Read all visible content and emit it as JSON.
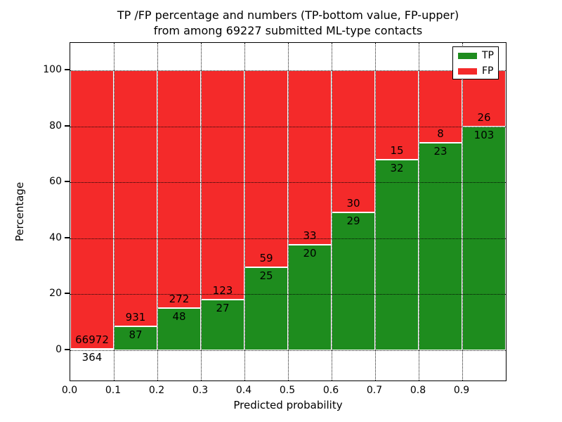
{
  "title": {
    "line1": "TP /FP percentage and numbers (TP-bottom value, FP-upper)",
    "line2": "from among 69227 submitted ML-type contacts"
  },
  "axes": {
    "xlabel": "Predicted probability",
    "ylabel": "Percentage",
    "xticks": [
      "0.0",
      "0.1",
      "0.2",
      "0.3",
      "0.4",
      "0.5",
      "0.6",
      "0.7",
      "0.8",
      "0.9"
    ],
    "yticks": [
      0,
      20,
      40,
      60,
      80,
      100
    ]
  },
  "legend": {
    "position": "upper right",
    "items": [
      {
        "label": "TP",
        "color": "#1e8c1e"
      },
      {
        "label": "FP",
        "color": "#f42a2a"
      }
    ]
  },
  "chart_data": {
    "type": "bar",
    "stacked": true,
    "normalized": "each bar totals 100%",
    "title": "TP /FP percentage and numbers (TP-bottom value, FP-upper) from among 69227 submitted ML-type contacts",
    "xlabel": "Predicted probability",
    "ylabel": "Percentage",
    "total_submitted_contacts": 69227,
    "bin_width": 0.1,
    "categories": [
      "0.0",
      "0.1",
      "0.2",
      "0.3",
      "0.4",
      "0.5",
      "0.6",
      "0.7",
      "0.8",
      "0.9"
    ],
    "series": [
      {
        "name": "TP",
        "color": "#1e8c1e",
        "values": [
          364,
          87,
          48,
          27,
          25,
          20,
          29,
          32,
          23,
          103
        ]
      },
      {
        "name": "FP",
        "color": "#f42a2a",
        "values": [
          66972,
          931,
          272,
          123,
          59,
          33,
          30,
          15,
          8,
          26
        ]
      }
    ],
    "tp_percent_derived": [
      0.54,
      8.55,
      15.0,
      18.0,
      29.76,
      37.74,
      49.15,
      68.09,
      74.19,
      79.84
    ],
    "xlim": [
      0.0,
      1.0
    ],
    "ylim": [
      -11,
      110
    ],
    "grid": true,
    "grid_style": "dotted",
    "legend_position": "upper right"
  }
}
